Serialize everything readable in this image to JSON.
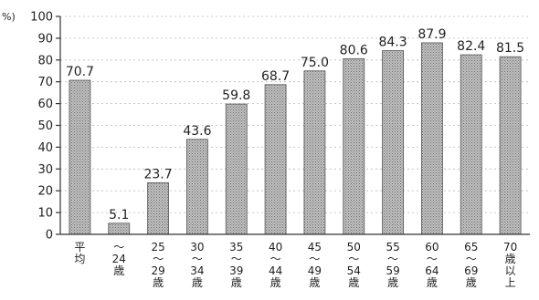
{
  "chart_data": {
    "type": "bar",
    "unit_label": "%)",
    "categories": [
      [
        "平",
        "均"
      ],
      [
        "～",
        "24",
        "歳"
      ],
      [
        "25",
        "～",
        "29",
        "歳"
      ],
      [
        "30",
        "～",
        "34",
        "歳"
      ],
      [
        "35",
        "～",
        "39",
        "歳"
      ],
      [
        "40",
        "～",
        "44",
        "歳"
      ],
      [
        "45",
        "～",
        "49",
        "歳"
      ],
      [
        "50",
        "～",
        "54",
        "歳"
      ],
      [
        "55",
        "～",
        "59",
        "歳"
      ],
      [
        "60",
        "～",
        "64",
        "歳"
      ],
      [
        "65",
        "～",
        "69",
        "歳"
      ],
      [
        "70",
        "歳",
        "以",
        "上"
      ]
    ],
    "values": [
      70.7,
      5.1,
      23.7,
      43.6,
      59.8,
      68.7,
      75.0,
      80.6,
      84.3,
      87.9,
      82.4,
      81.5
    ],
    "value_labels": [
      "70.7",
      "5.1",
      "23.7",
      "43.6",
      "59.8",
      "68.7",
      "75.0",
      "80.6",
      "84.3",
      "87.9",
      "82.4",
      "81.5"
    ],
    "ylim": [
      0,
      100
    ],
    "yticks": [
      0,
      10,
      20,
      30,
      40,
      50,
      60,
      70,
      80,
      90,
      100
    ],
    "grid": true,
    "bar_color": "#a9a9a9",
    "bar_edge_color": "#555555"
  }
}
